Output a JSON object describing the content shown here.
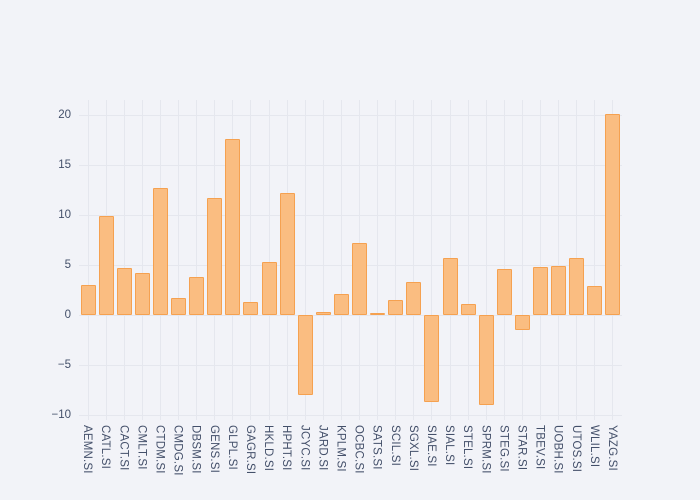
{
  "figure": {
    "background_color": "#f2f3f8",
    "gridline_color": "#e5e7ee",
    "tick_label_color": "#44506a"
  },
  "chart_data": {
    "type": "bar",
    "title": "",
    "xlabel": "",
    "ylabel": "",
    "categories": [
      "AEMN.SI",
      "CATL.SI",
      "CACT.SI",
      "CMLT.SI",
      "CTDM.SI",
      "CMDG.SI",
      "DBSM.SI",
      "GENS.SI",
      "GLPL.SI",
      "GAGR.SI",
      "HKLD.SI",
      "HPHT.SI",
      "JCYC.SI",
      "JARD.SI",
      "KPLM.SI",
      "OCBC.SI",
      "SATS.SI",
      "SCIL.SI",
      "SGXL.SI",
      "SIAE.SI",
      "SIAL.SI",
      "STEL.SI",
      "SPRM.SI",
      "STEG.SI",
      "STAR.SI",
      "TBEV.SI",
      "UOBH.SI",
      "UTOS.SI",
      "WLIL.SI",
      "YAZG.SI"
    ],
    "values": [
      3.0,
      9.9,
      4.7,
      4.2,
      12.7,
      1.7,
      3.8,
      11.7,
      17.6,
      1.3,
      5.3,
      12.2,
      -8.0,
      0.3,
      2.1,
      7.2,
      0.2,
      1.5,
      3.3,
      -8.7,
      5.7,
      1.1,
      -9.0,
      4.6,
      -1.5,
      4.8,
      4.9,
      5.7,
      2.9,
      20.1
    ],
    "yticks": [
      -10,
      -5,
      0,
      5,
      10,
      15,
      20
    ],
    "ytick_labels": [
      "−10",
      "−5",
      "0",
      "5",
      "10",
      "15",
      "20"
    ],
    "ylim": [
      -10.5,
      21.5
    ],
    "grid": true,
    "legend": false,
    "bar_color": "#fabd81",
    "bar_border_color": "#f5a150"
  }
}
